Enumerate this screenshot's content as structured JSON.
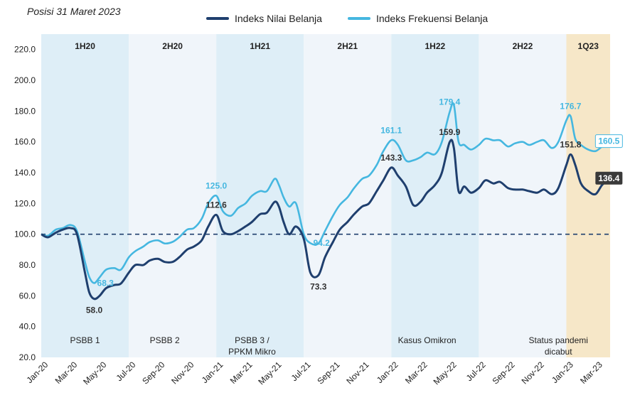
{
  "subtitle": "Posisi 31 Maret 2023",
  "chart_data": {
    "type": "line",
    "colors": {
      "nilai": "#1f3f6e",
      "frekuensi": "#45b7e0",
      "baseline": "#1f3f6e"
    },
    "x_ticks": [
      "Jan-20",
      "Mar-20",
      "May-20",
      "Jul-20",
      "Sep-20",
      "Nov-20",
      "Jan-21",
      "Mar-21",
      "May-21",
      "Jul-21",
      "Sep-21",
      "Nov-21",
      "Jan-22",
      "Mar-22",
      "May-22",
      "Jul-22",
      "Sep-22",
      "Nov-22",
      "Jan-23",
      "Mar-23"
    ],
    "y_ticks": [
      "20.0",
      "40.0",
      "60.0",
      "80.0",
      "100.0",
      "120.0",
      "140.0",
      "160.0",
      "180.0",
      "200.0",
      "220.0"
    ],
    "ylim": [
      20,
      230
    ],
    "xlim": [
      "2020-01",
      "2023-03"
    ],
    "baseline": 100,
    "periods": [
      {
        "label": "1H20",
        "start": "2020-01",
        "end": "2020-06",
        "shade": "#deeef7"
      },
      {
        "label": "2H20",
        "start": "2020-07",
        "end": "2020-12",
        "shade": "#f0f5fa"
      },
      {
        "label": "1H21",
        "start": "2021-01",
        "end": "2021-06",
        "shade": "#deeef7"
      },
      {
        "label": "2H21",
        "start": "2021-07",
        "end": "2021-12",
        "shade": "#f0f5fa"
      },
      {
        "label": "1H22",
        "start": "2022-01",
        "end": "2022-06",
        "shade": "#deeef7"
      },
      {
        "label": "2H22",
        "start": "2022-07",
        "end": "2022-12",
        "shade": "#f0f5fa"
      },
      {
        "label": "1Q23",
        "start": "2023-01",
        "end": "2023-03",
        "shade": "#f6e7c8"
      }
    ],
    "event_labels": [
      {
        "text": "PSBB 1",
        "x": "2020-04"
      },
      {
        "text": "PSBB 2",
        "x": "2020-09-15"
      },
      {
        "text": "PSBB 3 /",
        "x": "2021-03-15"
      },
      {
        "text": "PPKM Mikro",
        "x": "2021-03-15"
      },
      {
        "text": "Kasus Omikron",
        "x": "2022-03-15"
      },
      {
        "text": "Status pandemi",
        "x": "2022-12-15"
      },
      {
        "text": "dicabut",
        "x": "2022-12-15"
      }
    ],
    "series": [
      {
        "name": "Indeks Nilai Belanja",
        "x": [
          "2020-01-01",
          "2020-01-15",
          "2020-02-01",
          "2020-02-15",
          "2020-03-01",
          "2020-03-15",
          "2020-04-01",
          "2020-04-10",
          "2020-04-20",
          "2020-05-01",
          "2020-05-15",
          "2020-06-01",
          "2020-06-15",
          "2020-07-01",
          "2020-07-15",
          "2020-08-01",
          "2020-08-15",
          "2020-09-01",
          "2020-09-15",
          "2020-10-01",
          "2020-10-15",
          "2020-11-01",
          "2020-11-15",
          "2020-12-01",
          "2020-12-15",
          "2021-01-01",
          "2021-01-15",
          "2021-02-01",
          "2021-02-15",
          "2021-03-01",
          "2021-03-15",
          "2021-04-01",
          "2021-04-15",
          "2021-05-01",
          "2021-05-10",
          "2021-05-20",
          "2021-06-01",
          "2021-06-15",
          "2021-07-01",
          "2021-07-15",
          "2021-08-01",
          "2021-08-15",
          "2021-09-01",
          "2021-09-15",
          "2021-10-01",
          "2021-10-15",
          "2021-11-01",
          "2021-11-15",
          "2021-12-01",
          "2021-12-15",
          "2022-01-01",
          "2022-01-15",
          "2022-02-01",
          "2022-02-15",
          "2022-03-01",
          "2022-03-15",
          "2022-04-01",
          "2022-04-15",
          "2022-05-01",
          "2022-05-10",
          "2022-05-20",
          "2022-06-01",
          "2022-06-15",
          "2022-07-01",
          "2022-07-15",
          "2022-08-01",
          "2022-08-15",
          "2022-09-01",
          "2022-09-15",
          "2022-10-01",
          "2022-10-15",
          "2022-11-01",
          "2022-11-15",
          "2022-12-01",
          "2022-12-15",
          "2023-01-01",
          "2023-01-10",
          "2023-01-20",
          "2023-02-01",
          "2023-02-15",
          "2023-03-01",
          "2023-03-15",
          "2023-03-31"
        ],
        "values": [
          100,
          98,
          101,
          103,
          104,
          100,
          75,
          62,
          58,
          60,
          65,
          67,
          68,
          75,
          80,
          80,
          83,
          84,
          82,
          82,
          85,
          90,
          92,
          96,
          105,
          112.6,
          102,
          100,
          102,
          105,
          108,
          113,
          114,
          121,
          118,
          108,
          100,
          105,
          97,
          75,
          73.3,
          85,
          95,
          103,
          108,
          113,
          118,
          120,
          128,
          135,
          143.3,
          138,
          131,
          119,
          121,
          127,
          132,
          140,
          159.9,
          156,
          128,
          131,
          127,
          130,
          135,
          133,
          134,
          130,
          129,
          129,
          128,
          127,
          129,
          126,
          130,
          145,
          151.8,
          145,
          133,
          128,
          126,
          132,
          136.4
        ]
      },
      {
        "name": "Indeks Frekuensi Belanja",
        "x": [
          "2020-01-01",
          "2020-01-15",
          "2020-02-01",
          "2020-02-15",
          "2020-03-01",
          "2020-03-15",
          "2020-04-01",
          "2020-04-10",
          "2020-04-20",
          "2020-05-01",
          "2020-05-15",
          "2020-06-01",
          "2020-06-15",
          "2020-07-01",
          "2020-07-15",
          "2020-08-01",
          "2020-08-15",
          "2020-09-01",
          "2020-09-15",
          "2020-10-01",
          "2020-10-15",
          "2020-11-01",
          "2020-11-15",
          "2020-12-01",
          "2020-12-15",
          "2021-01-01",
          "2021-01-15",
          "2021-02-01",
          "2021-02-15",
          "2021-03-01",
          "2021-03-15",
          "2021-04-01",
          "2021-04-15",
          "2021-05-01",
          "2021-05-10",
          "2021-05-20",
          "2021-06-01",
          "2021-06-15",
          "2021-07-01",
          "2021-07-15",
          "2021-08-01",
          "2021-08-15",
          "2021-09-01",
          "2021-09-15",
          "2021-10-01",
          "2021-10-15",
          "2021-11-01",
          "2021-11-15",
          "2021-12-01",
          "2021-12-15",
          "2022-01-01",
          "2022-01-15",
          "2022-02-01",
          "2022-02-15",
          "2022-03-01",
          "2022-03-15",
          "2022-04-01",
          "2022-04-15",
          "2022-05-01",
          "2022-05-10",
          "2022-05-20",
          "2022-06-01",
          "2022-06-15",
          "2022-07-01",
          "2022-07-15",
          "2022-08-01",
          "2022-08-15",
          "2022-09-01",
          "2022-09-15",
          "2022-10-01",
          "2022-10-15",
          "2022-11-01",
          "2022-11-15",
          "2022-12-01",
          "2022-12-15",
          "2023-01-01",
          "2023-01-10",
          "2023-01-20",
          "2023-02-01",
          "2023-02-15",
          "2023-03-01",
          "2023-03-15",
          "2023-03-31"
        ],
        "values": [
          100,
          99,
          103,
          104,
          106,
          102,
          82,
          72,
          68.3,
          72,
          77,
          78,
          77,
          85,
          89,
          92,
          95,
          96,
          94,
          95,
          98,
          103,
          104,
          110,
          120,
          125.0,
          115,
          112,
          117,
          120,
          125,
          128,
          128,
          136,
          132,
          124,
          118,
          120,
          100,
          94.2,
          94,
          102,
          112,
          119,
          124,
          130,
          136,
          138,
          145,
          154,
          161.1,
          158,
          148,
          148,
          150,
          153,
          152,
          160,
          179.4,
          184,
          160,
          158,
          155,
          158,
          162,
          161,
          161,
          157,
          159,
          160,
          158,
          160,
          161,
          156,
          160,
          174,
          176.7,
          162,
          158,
          155,
          154,
          157,
          160.5
        ]
      }
    ],
    "data_labels": [
      {
        "series": 0,
        "text": "58.0",
        "x": "2020-04-20",
        "y": 58.0,
        "pos": "below"
      },
      {
        "series": 0,
        "text": "112.6",
        "x": "2021-01-01",
        "y": 112.6,
        "pos": "above"
      },
      {
        "series": 0,
        "text": "73.3",
        "x": "2021-08-01",
        "y": 73.3,
        "pos": "below"
      },
      {
        "series": 0,
        "text": "143.3",
        "x": "2022-01-01",
        "y": 143.3,
        "pos": "above"
      },
      {
        "series": 0,
        "text": "159.9",
        "x": "2022-05-01",
        "y": 159.9,
        "pos": "above"
      },
      {
        "series": 0,
        "text": "151.8",
        "x": "2023-01-10",
        "y": 151.8,
        "pos": "above"
      },
      {
        "series": 0,
        "text": "136.4",
        "x": "2023-03-31",
        "y": 136.4,
        "pos": "box"
      },
      {
        "series": 1,
        "text": "68.3",
        "x": "2020-04-20",
        "y": 68.3,
        "pos": "right"
      },
      {
        "series": 1,
        "text": "125.0",
        "x": "2021-01-01",
        "y": 125.0,
        "pos": "above"
      },
      {
        "series": 1,
        "text": "94.2",
        "x": "2021-07-15",
        "y": 94.2,
        "pos": "right"
      },
      {
        "series": 1,
        "text": "161.1",
        "x": "2022-01-01",
        "y": 161.1,
        "pos": "above"
      },
      {
        "series": 1,
        "text": "179.4",
        "x": "2022-05-01",
        "y": 179.4,
        "pos": "above"
      },
      {
        "series": 1,
        "text": "176.7",
        "x": "2023-01-10",
        "y": 176.7,
        "pos": "above"
      },
      {
        "series": 1,
        "text": "160.5",
        "x": "2023-03-31",
        "y": 160.5,
        "pos": "box"
      }
    ]
  }
}
